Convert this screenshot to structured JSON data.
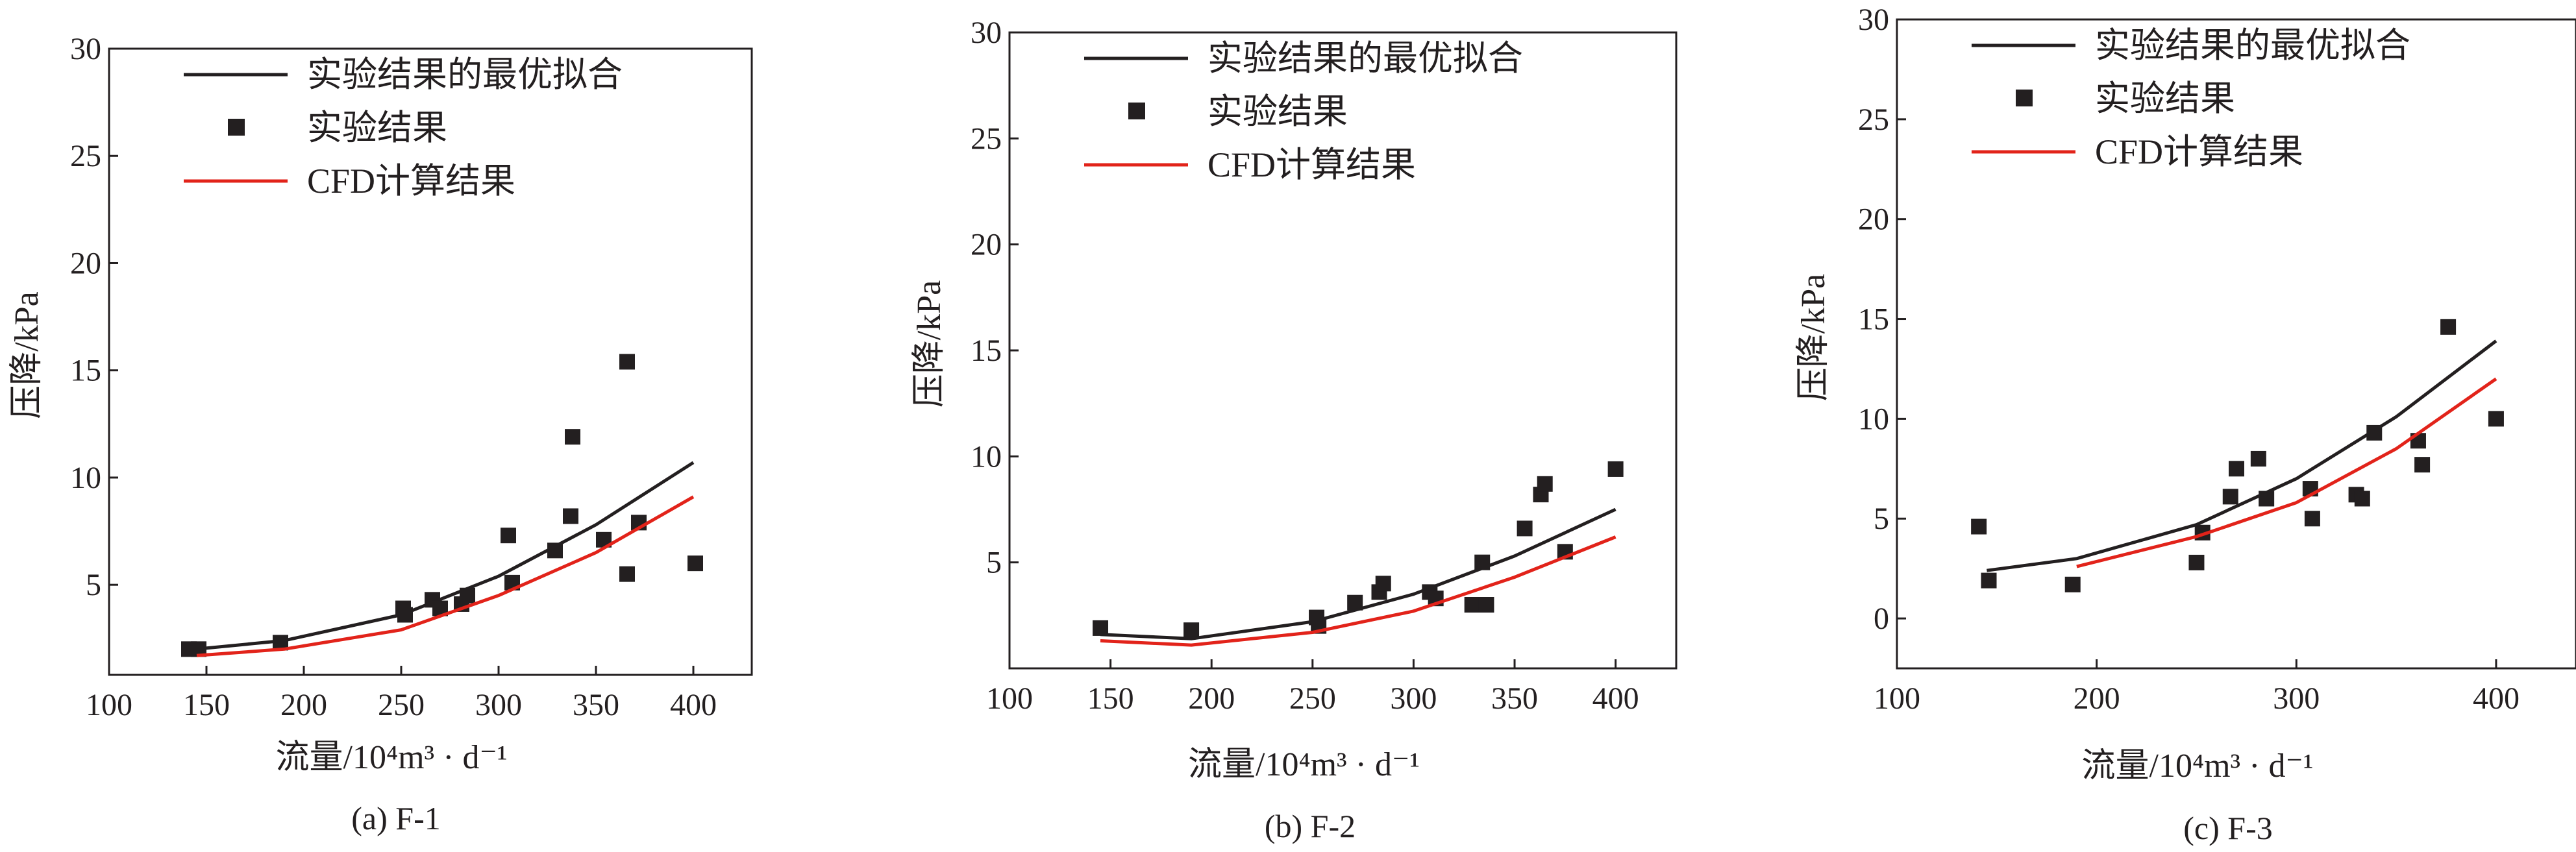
{
  "chart_data": [
    {
      "type": "scatter",
      "caption": "(a) F-1",
      "xlabel": "流量/10⁴m³ · d⁻¹",
      "ylabel": "压降/kPa",
      "xlim": [
        100,
        430
      ],
      "ylim": [
        0.8,
        30
      ],
      "xticks": [
        100,
        150,
        200,
        250,
        300,
        350,
        400
      ],
      "yticks": [
        5,
        10,
        15,
        20,
        25,
        30
      ],
      "legend_position": "top-left",
      "series": [
        {
          "name": "实验结果的最优拟合",
          "kind": "line",
          "color": "#231f20",
          "x": [
            145,
            190,
            250,
            300,
            350,
            400
          ],
          "y": [
            2.0,
            2.4,
            3.6,
            5.4,
            7.8,
            10.7
          ]
        },
        {
          "name": "实验结果",
          "kind": "scatter",
          "color": "#231f20",
          "x": [
            141,
            146,
            188,
            251,
            252,
            266,
            270,
            281,
            284,
            305,
            307,
            329,
            337,
            338,
            354,
            366,
            366,
            372,
            401
          ],
          "y": [
            2.0,
            2.0,
            2.3,
            3.9,
            3.6,
            4.3,
            3.9,
            4.1,
            4.5,
            7.3,
            5.1,
            6.6,
            8.2,
            11.9,
            7.1,
            15.4,
            5.5,
            7.9,
            6.0
          ]
        },
        {
          "name": "CFD计算结果",
          "kind": "line",
          "color": "#e2231a",
          "x": [
            145,
            190,
            250,
            300,
            350,
            400
          ],
          "y": [
            1.7,
            2.0,
            2.9,
            4.5,
            6.5,
            9.1
          ]
        }
      ]
    },
    {
      "type": "scatter",
      "caption": "(b) F-2",
      "xlabel": "流量/10⁴m³ · d⁻¹",
      "ylabel": "压降/kPa",
      "xlim": [
        100,
        430
      ],
      "ylim": [
        0,
        30
      ],
      "xticks": [
        100,
        150,
        200,
        250,
        300,
        350,
        400
      ],
      "yticks": [
        5,
        10,
        15,
        20,
        25,
        30
      ],
      "legend_position": "top-left",
      "series": [
        {
          "name": "实验结果的最优拟合",
          "kind": "line",
          "color": "#231f20",
          "x": [
            145,
            190,
            250,
            300,
            350,
            400
          ],
          "y": [
            1.6,
            1.4,
            2.2,
            3.5,
            5.3,
            7.5
          ]
        },
        {
          "name": "实验结果",
          "kind": "scatter",
          "color": "#231f20",
          "x": [
            145,
            190,
            252,
            253,
            271,
            283,
            285,
            308,
            311,
            329,
            334,
            336,
            355,
            363,
            365,
            375,
            400
          ],
          "y": [
            1.9,
            1.8,
            2.4,
            2.0,
            3.1,
            3.6,
            4.0,
            3.6,
            3.3,
            3.0,
            5.0,
            3.0,
            6.6,
            8.2,
            8.7,
            5.5,
            9.4
          ]
        },
        {
          "name": "CFD计算结果",
          "kind": "line",
          "color": "#e2231a",
          "x": [
            145,
            190,
            250,
            300,
            350,
            400
          ],
          "y": [
            1.3,
            1.1,
            1.7,
            2.7,
            4.3,
            6.2
          ]
        }
      ]
    },
    {
      "type": "scatter",
      "caption": "(c) F-3",
      "xlabel": "流量/10⁴m³ · d⁻¹",
      "ylabel": "压降/kPa",
      "xlim": [
        100,
        440
      ],
      "ylim": [
        -2.5,
        30
      ],
      "xticks": [
        100,
        200,
        300,
        400
      ],
      "yticks": [
        0,
        5,
        10,
        15,
        20,
        25,
        30
      ],
      "legend_position": "top-left",
      "series": [
        {
          "name": "实验结果的最优拟合",
          "kind": "line",
          "color": "#231f20",
          "x": [
            145,
            190,
            250,
            300,
            350,
            400
          ],
          "y": [
            2.4,
            3.0,
            4.7,
            7.0,
            10.1,
            13.9
          ]
        },
        {
          "name": "实验结果",
          "kind": "scatter",
          "color": "#231f20",
          "x": [
            141,
            146,
            188,
            250,
            253,
            267,
            270,
            281,
            285,
            307,
            308,
            330,
            333,
            339,
            361,
            363,
            376,
            400
          ],
          "y": [
            4.6,
            1.9,
            1.7,
            2.8,
            4.3,
            6.1,
            7.5,
            8.0,
            6.0,
            6.5,
            5.0,
            6.2,
            6.0,
            9.3,
            8.9,
            7.7,
            14.6,
            10.0
          ]
        },
        {
          "name": "CFD计算结果",
          "kind": "line",
          "color": "#e2231a",
          "x": [
            190,
            250,
            300,
            350,
            400
          ],
          "y": [
            2.6,
            4.1,
            5.8,
            8.5,
            12.0
          ]
        }
      ]
    }
  ]
}
